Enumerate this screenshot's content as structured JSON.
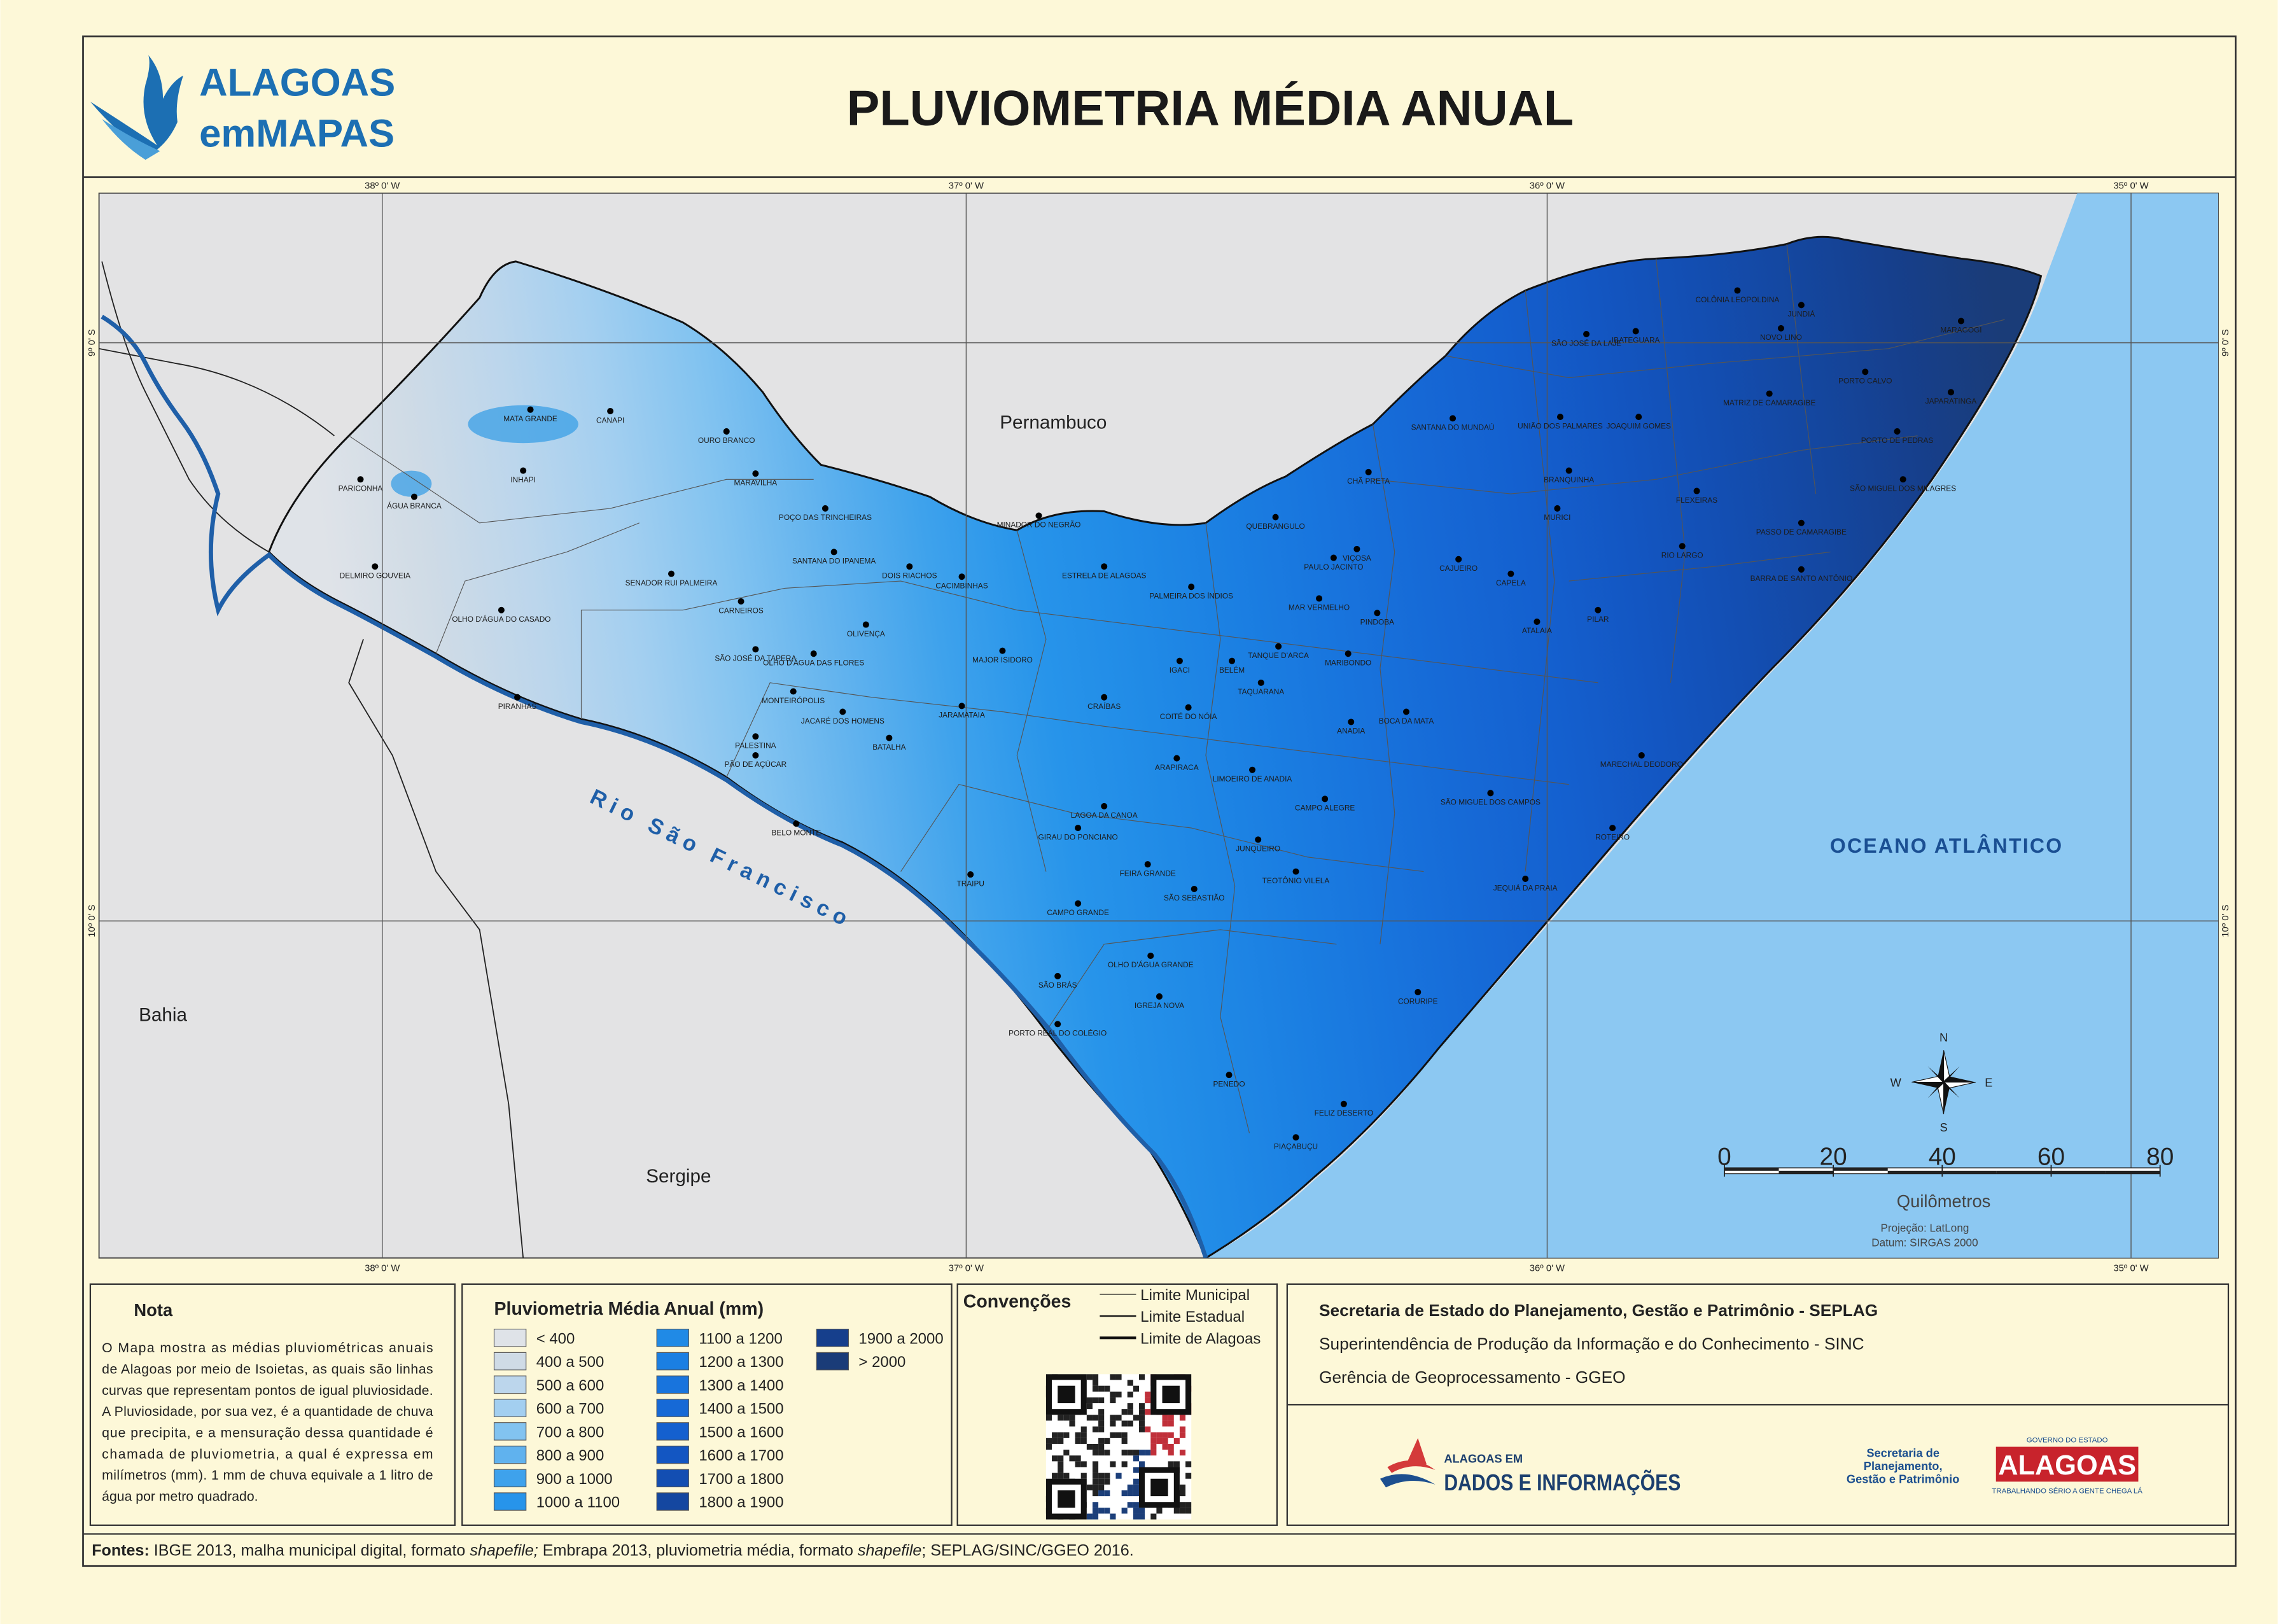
{
  "header": {
    "logo_line1": "ALAGOAS",
    "logo_line2": "emMAPAS",
    "title": "PLUVIOMETRIA MÉDIA ANUAL"
  },
  "map": {
    "lon_labels": [
      "38º 0' W",
      "37º 0' W",
      "36º 0' W",
      "35º 0' W"
    ],
    "lat_labels": [
      "9º 0' S",
      "10º 0' S"
    ],
    "regions": [
      "Pernambuco",
      "Bahia",
      "Sergipe"
    ],
    "ocean": "OCEANO ATLÂNTICO",
    "river": "Rio São Francisco",
    "municipalities": [
      "MATA GRANDE",
      "INHAPI",
      "CANAPI",
      "OURO BRANCO",
      "PARICONHA",
      "ÁGUA BRANCA",
      "DELMIRO GOUVEIA",
      "MARAVILHA",
      "POÇO DAS TRINCHEIRAS",
      "SENADOR RUI PALMEIRA",
      "SANTANA DO IPANEMA",
      "CARNEIROS",
      "OLHO D'ÁGUA DO CASADO",
      "SÃO JOSÉ DA TAPERA",
      "OLIVENÇA",
      "OLHO D'ÁGUA DAS FLORES",
      "PIRANHAS",
      "MONTEIRÓPOLIS",
      "JACARÉ DOS HOMENS",
      "PALESTINA",
      "PÃO DE AÇÚCAR",
      "BATALHA",
      "BELO MONTE",
      "DOIS RIACHOS",
      "CACIMBINHAS",
      "MAJOR ISIDORO",
      "JARAMATAIA",
      "MINADOR DO NEGRÃO",
      "ESTRELA DE ALAGOAS",
      "PALMEIRA DOS ÍNDIOS",
      "CRAÍBAS",
      "IGACI",
      "COITÉ DO NÓIA",
      "ARAPIRACA",
      "LAGOA DA CANOA",
      "GIRAU DO PONCIANO",
      "FEIRA GRANDE",
      "TRAIPU",
      "CAMPO GRANDE",
      "SÃO SEBASTIÃO",
      "OLHO D'ÁGUA GRANDE",
      "SÃO BRÁS",
      "IGREJA NOVA",
      "PORTO REAL DO COLÉGIO",
      "PENEDO",
      "FELIZ DESERTO",
      "PIAÇABUÇU",
      "LIMOEIRO DE ANADIA",
      "JUNQUEIRO",
      "TEOTÔNIO VILELA",
      "CAMPO ALEGRE",
      "ANADIA",
      "TAQUARANA",
      "BELÉM",
      "TANQUE D'ARCA",
      "MAR VERMELHO",
      "PINDOBA",
      "MARIBONDO",
      "BOCA DA MATA",
      "SÃO MIGUEL DOS CAMPOS",
      "ROTEIRO",
      "JEQUIÁ DA PRAIA",
      "CORURIPE",
      "QUEBRANGULO",
      "PAULO JACINTO",
      "VIÇOSA",
      "CHÃ PRETA",
      "CAJUEIRO",
      "CAPELA",
      "ATALAIA",
      "PILAR",
      "SANTANA DO MUNDAÚ",
      "UNIÃO DOS PALMARES",
      "BRANQUINHA",
      "MURICI",
      "SÃO JOSÉ DA LAJE",
      "IBATEGUARA",
      "COLÔNIA LEOPOLDINA",
      "NOVO LINO",
      "JUNDIÁ",
      "MARAGOGI",
      "JOAQUIM GOMES",
      "FLEXEIRAS",
      "MATRIZ DE CAMARAGIBE",
      "PORTO CALVO",
      "JAPARATINGA",
      "PORTO DE PEDRAS",
      "SÃO MIGUEL DOS MILAGRES",
      "PASSO DE CAMARAGIBE",
      "RIO LARGO",
      "BARRA DE SANTO ANTÔNIO",
      "MARECHAL DEODORO"
    ],
    "compass": [
      "N",
      "S",
      "W",
      "E"
    ],
    "scale_ticks": [
      0,
      20,
      40,
      60,
      80
    ],
    "scale_unit": "Quilômetros",
    "projection": "Projeção: LatLong",
    "datum": "Datum: SIRGAS 2000"
  },
  "note": {
    "title": "Nota",
    "lines": [
      "O Mapa mostra as médias pluviométricas anuais",
      "de Alagoas por meio de Isoietas, as quais são linhas",
      "curvas que representam pontos de igual pluviosidade.",
      "A Pluviosidade, por sua vez, é a quantidade de chuva",
      "que precipita, e a mensuração dessa quantidade é",
      "chamada de pluviometria, a qual é expressa em",
      "milímetros (mm). 1 mm de chuva equivale a 1 litro de",
      "água por metro quadrado."
    ]
  },
  "legend": {
    "title": "Pluviometria Média Anual (mm)",
    "items": [
      {
        "label": "< 400",
        "color": "#dfe3e8"
      },
      {
        "label": "400 a 500",
        "color": "#cfdbe6"
      },
      {
        "label": "500 a 600",
        "color": "#bcd6ec"
      },
      {
        "label": "600 a 700",
        "color": "#a3cff0"
      },
      {
        "label": "700 a 800",
        "color": "#82c3f0"
      },
      {
        "label": "800 a 900",
        "color": "#60b2ee"
      },
      {
        "label": "900 a 1000",
        "color": "#3ea2ec"
      },
      {
        "label": "1000 a 1100",
        "color": "#2794ea"
      },
      {
        "label": "1100 a 1200",
        "color": "#208ae6"
      },
      {
        "label": "1200 a 1300",
        "color": "#1b7fe2"
      },
      {
        "label": "1300 a 1400",
        "color": "#1874dd"
      },
      {
        "label": "1400 a 1500",
        "color": "#1669d6"
      },
      {
        "label": "1500 a 1600",
        "color": "#1460cf"
      },
      {
        "label": "1600 a 1700",
        "color": "#1356c2"
      },
      {
        "label": "1700 a 1800",
        "color": "#134eb2"
      },
      {
        "label": "1800 a 1900",
        "color": "#1447a0"
      },
      {
        "label": "1900 a 2000",
        "color": "#163f8c"
      },
      {
        "label": "> 2000",
        "color": "#1a3c78"
      }
    ]
  },
  "conventions": {
    "title": "Convenções",
    "items": [
      "Limite Municipal",
      "Limite Estadual",
      "Limite de Alagoas"
    ]
  },
  "credits": {
    "lines": [
      "Secretaria de Estado do Planejamento, Gestão e Patrimônio - SEPLAG",
      "Superintendência de Produção da Informação e do Conhecimento - SINC",
      "Gerência de Geoprocessamento - GGEO"
    ],
    "logo_dados": [
      "ALAGOAS EM",
      "DADOS E INFORMAÇÕES"
    ],
    "logo_seplag": [
      "Secretaria de",
      "Planejamento,",
      "Gestão e Patrimônio"
    ],
    "logo_gov": [
      "GOVERNO DO ESTADO",
      "ALAGOAS",
      "TRABALHANDO SÉRIO A GENTE CHEGA LÁ"
    ]
  },
  "sources": {
    "label": "Fontes:",
    "parts": [
      " IBGE 2013, malha municipal digital, formato ",
      "shapefile;",
      " Embrapa 2013, pluviometria média, formato ",
      "shapefile",
      "; SEPLAG/SINC/GGEO 2016."
    ]
  }
}
